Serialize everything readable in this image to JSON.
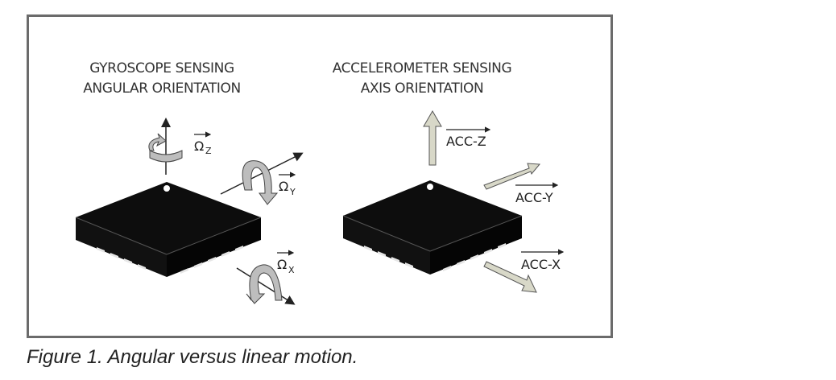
{
  "gyroscope": {
    "heading_line1": "GYROSCOPE SENSING",
    "heading_line2": "ANGULAR ORIENTATION",
    "axis_z": {
      "symbol": "Ω",
      "sub": "Z"
    },
    "axis_y": {
      "symbol": "Ω",
      "sub": "Y"
    },
    "axis_x": {
      "symbol": "Ω",
      "sub": "X"
    }
  },
  "accelerometer": {
    "heading_line1": "ACCELEROMETER SENSING",
    "heading_line2": "AXIS ORIENTATION",
    "axis_z": "ACC-Z",
    "axis_y": "ACC-Y",
    "axis_x": "ACC-X"
  },
  "caption": "Figure 1. Angular versus linear motion.",
  "colors": {
    "chip": "#0d0d0d",
    "arrow_fill": "#d8d8c8",
    "rotation_fill": "#bdbdbd",
    "frame": "#6b6b6b"
  }
}
